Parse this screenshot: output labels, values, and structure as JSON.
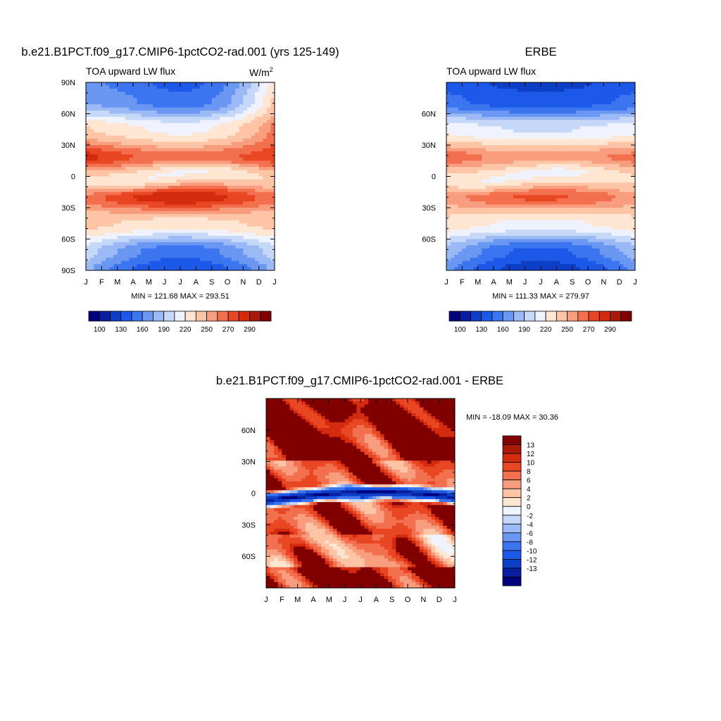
{
  "chart_data": [
    {
      "type": "heatmap",
      "title": "b.e21.B1PCT.f09_g17.CMIP6-1pctCO2-rad.001 (yrs 125-149)",
      "subtitle": "TOA upward LW flux",
      "units": "W/m",
      "units_exp": "2",
      "stats": "MIN = 121.68 MAX = 293.51",
      "x_ticks": [
        "J",
        "F",
        "M",
        "A",
        "M",
        "J",
        "J",
        "A",
        "S",
        "O",
        "N",
        "D",
        "J"
      ],
      "y_ticks": [
        {
          "lat": 90,
          "label": "90N"
        },
        {
          "lat": 60,
          "label": "60N"
        },
        {
          "lat": 30,
          "label": "30N"
        },
        {
          "lat": 0,
          "label": "0"
        },
        {
          "lat": -30,
          "label": "30S"
        },
        {
          "lat": -60,
          "label": "60S"
        },
        {
          "lat": -90,
          "label": "90S"
        }
      ],
      "ylim": [
        -90,
        90
      ],
      "colorbar": {
        "orientation": "horizontal",
        "levels": [
          100,
          130,
          160,
          190,
          220,
          250,
          270,
          290
        ],
        "labels": [
          "100",
          "130",
          "160",
          "190",
          "220",
          "250",
          "270",
          "290"
        ]
      },
      "features": {
        "nh_polar": [
          172,
          150,
          240
        ],
        "nh_sub": [
          285,
          265,
          275
        ],
        "eq": [
          228,
          218,
          240
        ],
        "sh_sub": [
          262,
          288,
          262
        ],
        "sh_polar": [
          200,
          150,
          200
        ]
      }
    },
    {
      "type": "heatmap",
      "title": "ERBE",
      "subtitle": "TOA upward LW flux",
      "stats": "MIN = 111.33 MAX = 279.97",
      "x_ticks": [
        "J",
        "F",
        "M",
        "A",
        "M",
        "J",
        "J",
        "A",
        "S",
        "O",
        "N",
        "D",
        "J"
      ],
      "y_ticks": [
        {
          "lat": 60,
          "label": "60N"
        },
        {
          "lat": 30,
          "label": "30N"
        },
        {
          "lat": 0,
          "label": "0"
        },
        {
          "lat": -30,
          "label": "30S"
        },
        {
          "lat": -60,
          "label": "60S"
        }
      ],
      "ylim": [
        -90,
        90
      ],
      "colorbar": {
        "orientation": "horizontal",
        "levels": [
          100,
          130,
          160,
          190,
          220,
          250,
          270,
          290
        ],
        "labels": [
          "100",
          "130",
          "160",
          "190",
          "220",
          "250",
          "270",
          "290"
        ]
      },
      "features": {
        "nh_polar": [
          150,
          135,
          150
        ],
        "nh_sub": [
          268,
          255,
          264
        ],
        "eq": [
          225,
          215,
          232
        ],
        "sh_sub": [
          255,
          272,
          255
        ],
        "sh_polar": [
          185,
          140,
          185
        ]
      }
    },
    {
      "type": "heatmap",
      "title": "b.e21.B1PCT.f09_g17.CMIP6-1pctCO2-rad.001 - ERBE",
      "stats": "MIN = -18.09 MAX =  30.36",
      "x_ticks": [
        "J",
        "F",
        "M",
        "A",
        "M",
        "J",
        "J",
        "A",
        "S",
        "O",
        "N",
        "D",
        "J"
      ],
      "y_ticks": [
        {
          "lat": 60,
          "label": "60N"
        },
        {
          "lat": 30,
          "label": "30N"
        },
        {
          "lat": 0,
          "label": "0"
        },
        {
          "lat": -30,
          "label": "30S"
        },
        {
          "lat": -60,
          "label": "60S"
        }
      ],
      "ylim": [
        -90,
        90
      ],
      "colorbar": {
        "orientation": "vertical",
        "levels": [
          13,
          12,
          10,
          8,
          6,
          4,
          2,
          0,
          -2,
          -4,
          -6,
          -8,
          -10,
          -12,
          -13
        ],
        "labels": [
          "13",
          "12",
          "10",
          "8",
          "6",
          "4",
          "2",
          "0",
          "-2",
          "-4",
          "-6",
          "-8",
          "-10",
          "-12",
          "-13"
        ]
      }
    }
  ],
  "colors": {
    "div": [
      "#00007f",
      "#0a1fa0",
      "#0d3ec6",
      "#1d59e8",
      "#3c75f0",
      "#6a97f2",
      "#9bbaf5",
      "#c6d8f8",
      "#eef3ff",
      "#ffe6d2",
      "#fdc4a5",
      "#f89d7e",
      "#f3704f",
      "#e94724",
      "#d42a0e",
      "#ab1a08",
      "#800000"
    ]
  }
}
